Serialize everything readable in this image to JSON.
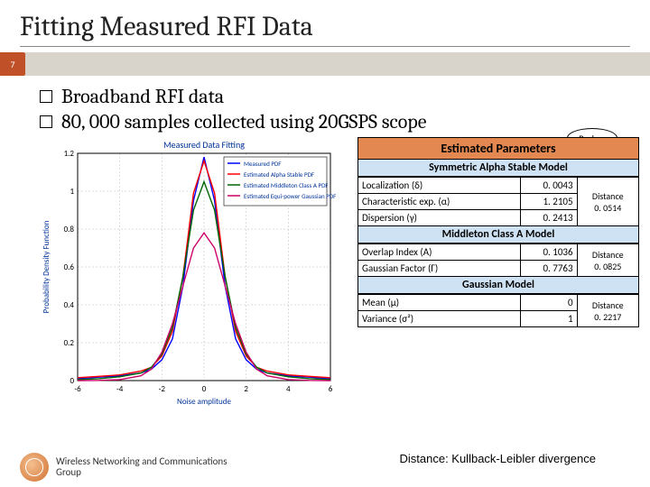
{
  "title": "Fitting Measured RFI Data",
  "slide_number": "7",
  "bullets": [
    "Broadband RFI data",
    "80, 000 samples collected using 20GSPS scope"
  ],
  "backup_label": "Backup",
  "params_panel": {
    "header": "Estimated Parameters",
    "models": [
      {
        "title": "Symmetric Alpha Stable Model",
        "rows": [
          {
            "name": "Localization (δ)",
            "value": "0. 0043"
          },
          {
            "name": "Characteristic exp. (α)",
            "value": "1. 2105"
          },
          {
            "name": "Dispersion (γ)",
            "value": "0. 2413"
          }
        ],
        "distance": {
          "label": "Distance",
          "value": "0. 0514"
        }
      },
      {
        "title": "Middleton Class A Model",
        "rows": [
          {
            "name": "Overlap Index (A)",
            "value": "0. 1036"
          },
          {
            "name": "Gaussian Factor (Γ)",
            "value": "0. 7763"
          }
        ],
        "distance": {
          "label": "Distance",
          "value": "0. 0825"
        }
      },
      {
        "title": "Gaussian Model",
        "rows": [
          {
            "name": "Mean (μ)",
            "value": "0"
          },
          {
            "name": "Variance (σ²)",
            "value": "1"
          }
        ],
        "distance": {
          "label": "Distance",
          "value": "0. 2217"
        }
      }
    ]
  },
  "note_text": "Distance:  Kullback-Leibler divergence",
  "footer": {
    "logo_text": "WNCG",
    "text_line1": "Wireless Networking and Communications",
    "text_line2": "Group"
  },
  "chart": {
    "type": "line",
    "title": "Measured Data Fitting",
    "title_fontsize": 10,
    "xlabel": "Noise amplitude",
    "ylabel": "Probability Density Function",
    "label_fontsize": 9,
    "xlim": [
      -6,
      6
    ],
    "xtick_step": 2,
    "ylim": [
      0,
      1.2
    ],
    "ytick_step": 0.2,
    "background_color": "#ffffff",
    "grid_color": "#cccccc",
    "legend": {
      "position": "upper-right-inside",
      "entries": [
        {
          "label": "Measured PDF",
          "color": "#0000ff"
        },
        {
          "label": "Estimated Alpha Stable PDF",
          "color": "#ff0000"
        },
        {
          "label": "Estimated Middleton Class A PDF",
          "color": "#006600"
        },
        {
          "label": "Estimated Equi-power Gaussian PDF",
          "color": "#cc0066"
        }
      ]
    },
    "series": [
      {
        "name": "Measured PDF",
        "color": "#0000ff",
        "linewidth": 1.4,
        "x": [
          -6,
          -5,
          -4,
          -3,
          -2.5,
          -2,
          -1.5,
          -1,
          -0.5,
          0,
          0.5,
          1,
          1.5,
          2,
          2.5,
          3,
          4,
          5,
          6
        ],
        "y": [
          0.01,
          0.018,
          0.025,
          0.04,
          0.06,
          0.11,
          0.22,
          0.5,
          0.95,
          1.18,
          0.95,
          0.5,
          0.22,
          0.11,
          0.06,
          0.04,
          0.025,
          0.018,
          0.01
        ]
      },
      {
        "name": "Estimated Alpha Stable PDF",
        "color": "#ff0000",
        "linewidth": 1.4,
        "x": [
          -6,
          -5,
          -4,
          -3,
          -2.5,
          -2,
          -1.5,
          -1,
          -0.5,
          0,
          0.5,
          1,
          1.5,
          2,
          2.5,
          3,
          4,
          5,
          6
        ],
        "y": [
          0.015,
          0.022,
          0.03,
          0.05,
          0.07,
          0.13,
          0.26,
          0.55,
          0.99,
          1.16,
          0.99,
          0.55,
          0.26,
          0.13,
          0.07,
          0.05,
          0.03,
          0.022,
          0.015
        ]
      },
      {
        "name": "Estimated Middleton Class A PDF",
        "color": "#006600",
        "linewidth": 1.4,
        "x": [
          -6,
          -5,
          -4,
          -3,
          -2.5,
          -2,
          -1.5,
          -1,
          -0.5,
          0,
          0.5,
          1,
          1.5,
          2,
          2.5,
          3,
          4,
          5,
          6
        ],
        "y": [
          0.005,
          0.01,
          0.02,
          0.04,
          0.07,
          0.14,
          0.28,
          0.55,
          0.9,
          1.05,
          0.9,
          0.55,
          0.28,
          0.14,
          0.07,
          0.04,
          0.02,
          0.01,
          0.005
        ]
      },
      {
        "name": "Estimated Equi-power Gaussian PDF",
        "color": "#cc0066",
        "linewidth": 1.4,
        "x": [
          -6,
          -5,
          -4,
          -3,
          -2.5,
          -2,
          -1.5,
          -1,
          -0.5,
          0,
          0.5,
          1,
          1.5,
          2,
          2.5,
          3,
          4,
          5,
          6
        ],
        "y": [
          0,
          0.001,
          0.005,
          0.025,
          0.06,
          0.15,
          0.3,
          0.5,
          0.7,
          0.78,
          0.7,
          0.5,
          0.3,
          0.15,
          0.06,
          0.025,
          0.005,
          0.001,
          0
        ]
      }
    ]
  },
  "colors": {
    "accent": "#c05028",
    "bar": "#d8d4cc",
    "section_bg": "#cfe2f3",
    "header_bg": "#e28850"
  }
}
